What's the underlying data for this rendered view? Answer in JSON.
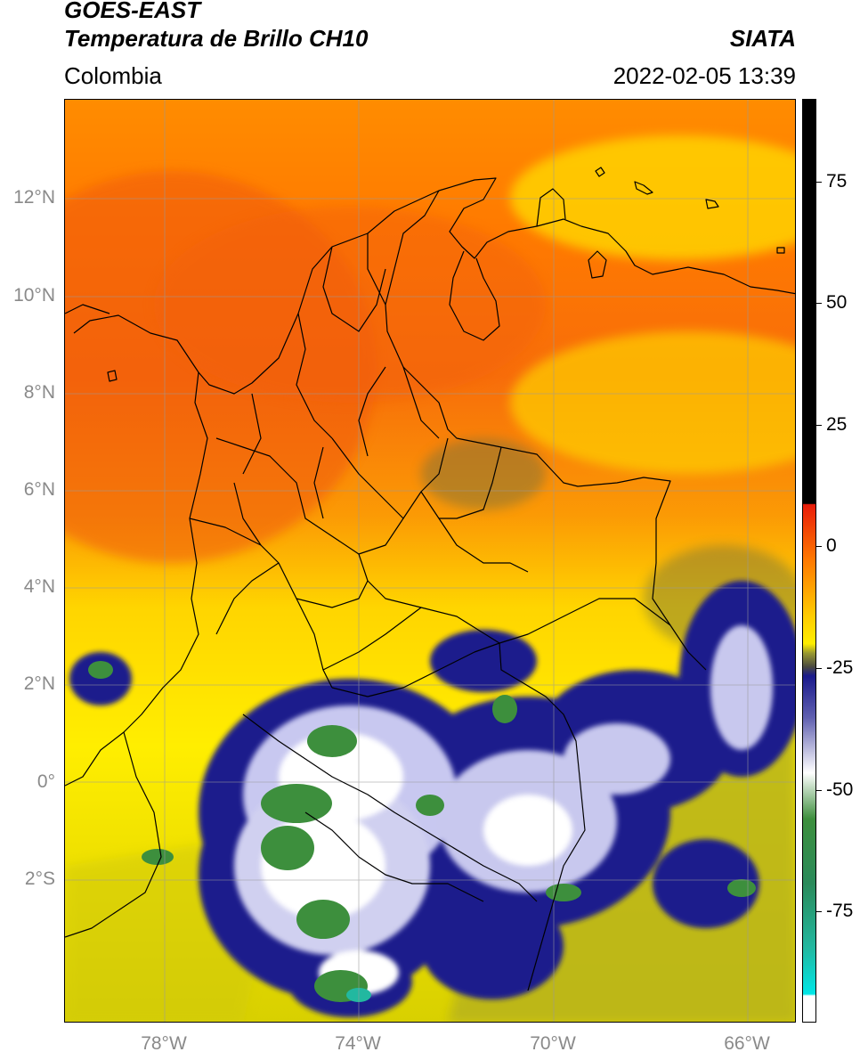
{
  "header": {
    "satellite": "GOES-EAST",
    "product": "Temperatura de Brillo CH10",
    "region": "Colombia",
    "agency": "SIATA",
    "datetime": "2022-02-05 13:39"
  },
  "map": {
    "lat_labels": [
      "12°N",
      "10°N",
      "8°N",
      "6°N",
      "4°N",
      "2°N",
      "0°",
      "2°S"
    ],
    "lon_labels": [
      "78°W",
      "74°W",
      "70°W",
      "66°W"
    ]
  },
  "colorbar": {
    "labels": [
      "75",
      "50",
      "25",
      "0",
      "-25",
      "-50",
      "-75"
    ]
  },
  "colors": {
    "warm": "#f2620a",
    "orange": "#ff9900",
    "yellow": "#ffee00",
    "olive": "#b8b420",
    "navy": "#1a1a8c",
    "white": "#ffffff",
    "green": "#3d8f3d",
    "teal": "#22b8a0",
    "cyan": "#00e6e6",
    "black": "#000000",
    "red": "#e81c0a"
  }
}
